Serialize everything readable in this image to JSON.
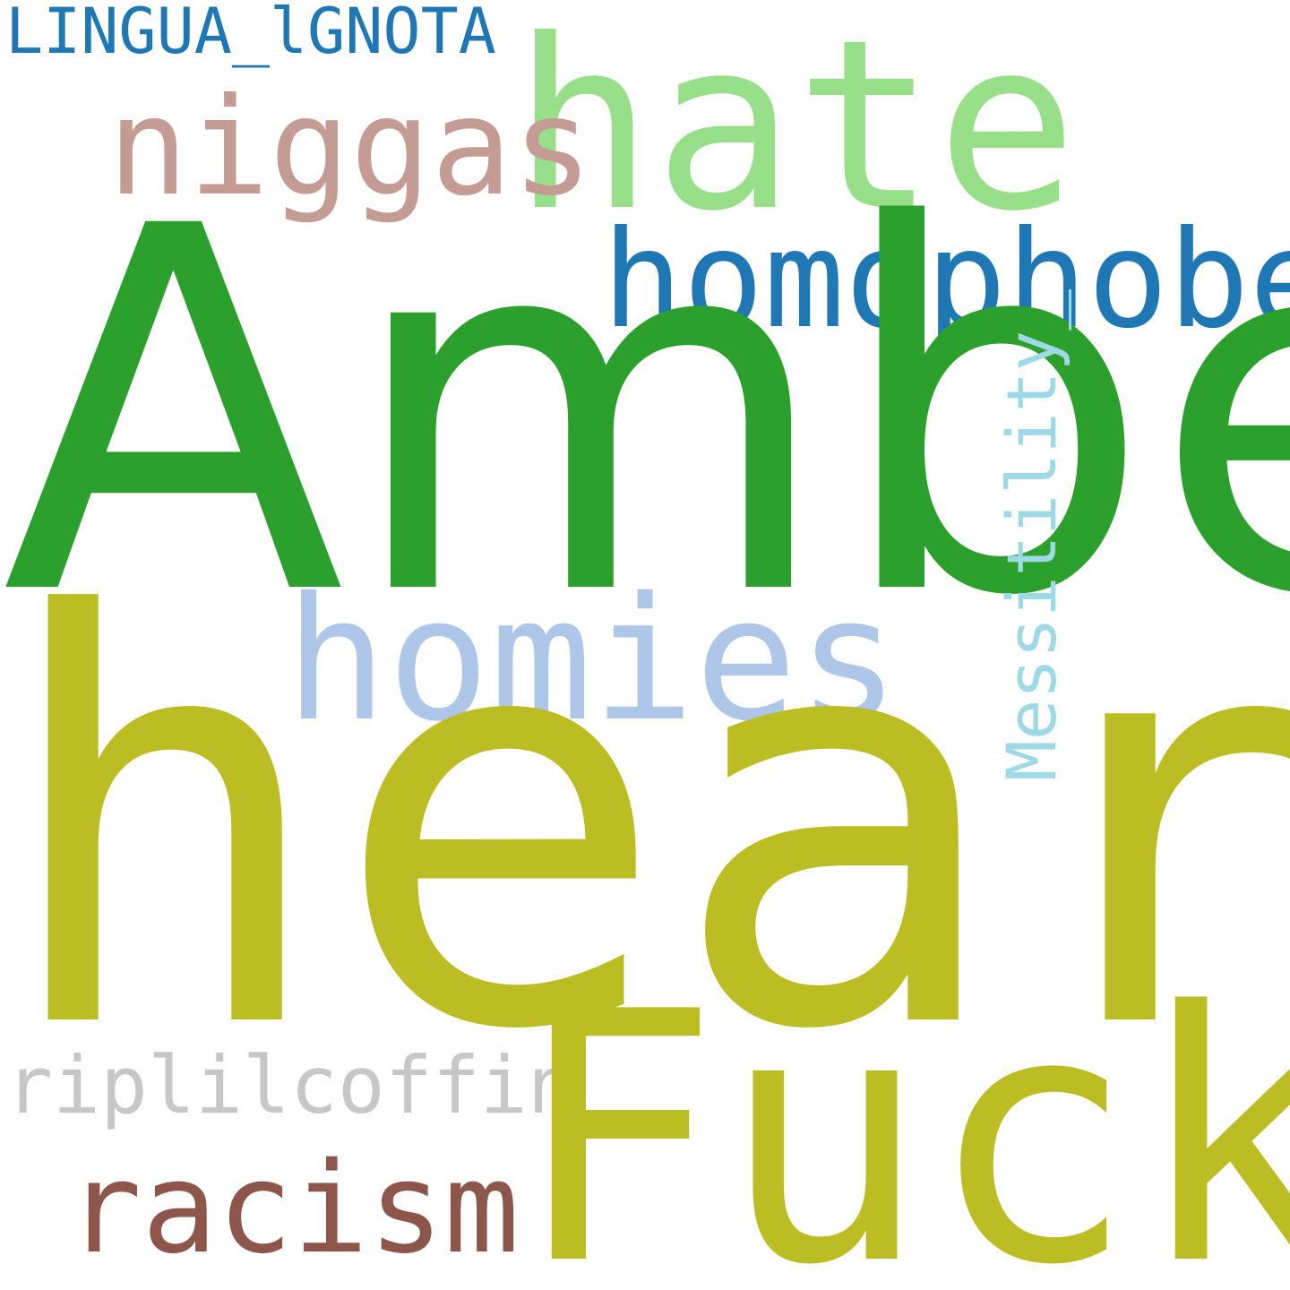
{
  "words": {
    "lingua": {
      "text": "LINGUA_lGNOTA",
      "color": "#1f77b4"
    },
    "hate": {
      "text": "hate",
      "color": "#98df8a"
    },
    "niggas": {
      "text": "niggas",
      "color": "#c49c94"
    },
    "homophobes": {
      "text": "homophobes",
      "color": "#1f77b4"
    },
    "amber": {
      "text": "Amber",
      "color": "#2ca02c"
    },
    "homies": {
      "text": "homies",
      "color": "#aec7e8"
    },
    "messitility": {
      "text": "Messitility_",
      "color": "#9edae5"
    },
    "heard": {
      "text": "heard",
      "color": "#bcbd22"
    },
    "riplilcoffin": {
      "text": "riplilcoffin",
      "color": "#c7c7c7"
    },
    "fuck": {
      "text": "Fuck",
      "color": "#bcbd22"
    },
    "racism": {
      "text": "racism",
      "color": "#8c564b"
    }
  }
}
